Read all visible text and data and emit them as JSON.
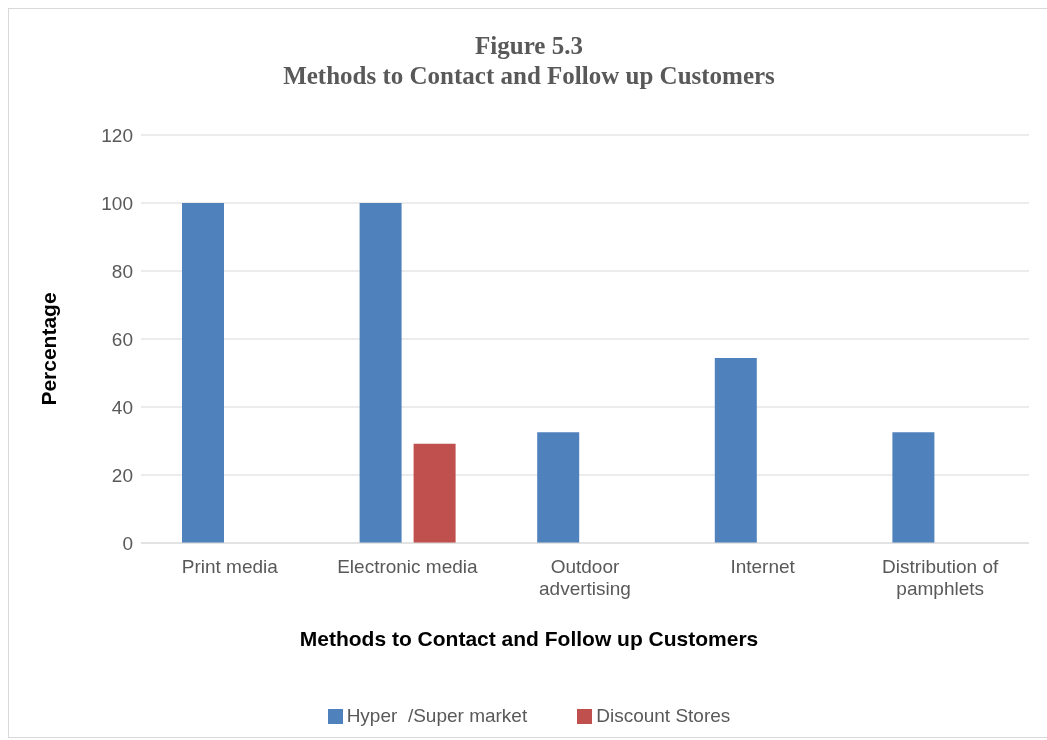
{
  "chart_data": {
    "type": "bar",
    "title": "Figure 5.3\nMethods to Contact and Follow up Customers",
    "xlabel": "Methods to Contact and Follow up Customers",
    "ylabel": "Percentage",
    "categories": [
      "Print media",
      "Electronic media",
      "Outdoor advertising",
      "Internet",
      "Distribution of pamphlets"
    ],
    "series": [
      {
        "name": "Hyper  /Super market",
        "color": "#4f81bd",
        "values": [
          100,
          100,
          32.6,
          54.4,
          32.6
        ]
      },
      {
        "name": "Discount Stores",
        "color": "#c0504d",
        "values": [
          0,
          29.2,
          0,
          0,
          0
        ]
      }
    ],
    "ylim": [
      0,
      120
    ],
    "yticks": [
      0,
      20,
      40,
      60,
      80,
      100,
      120
    ],
    "grid": "y",
    "legend": "bottom"
  }
}
